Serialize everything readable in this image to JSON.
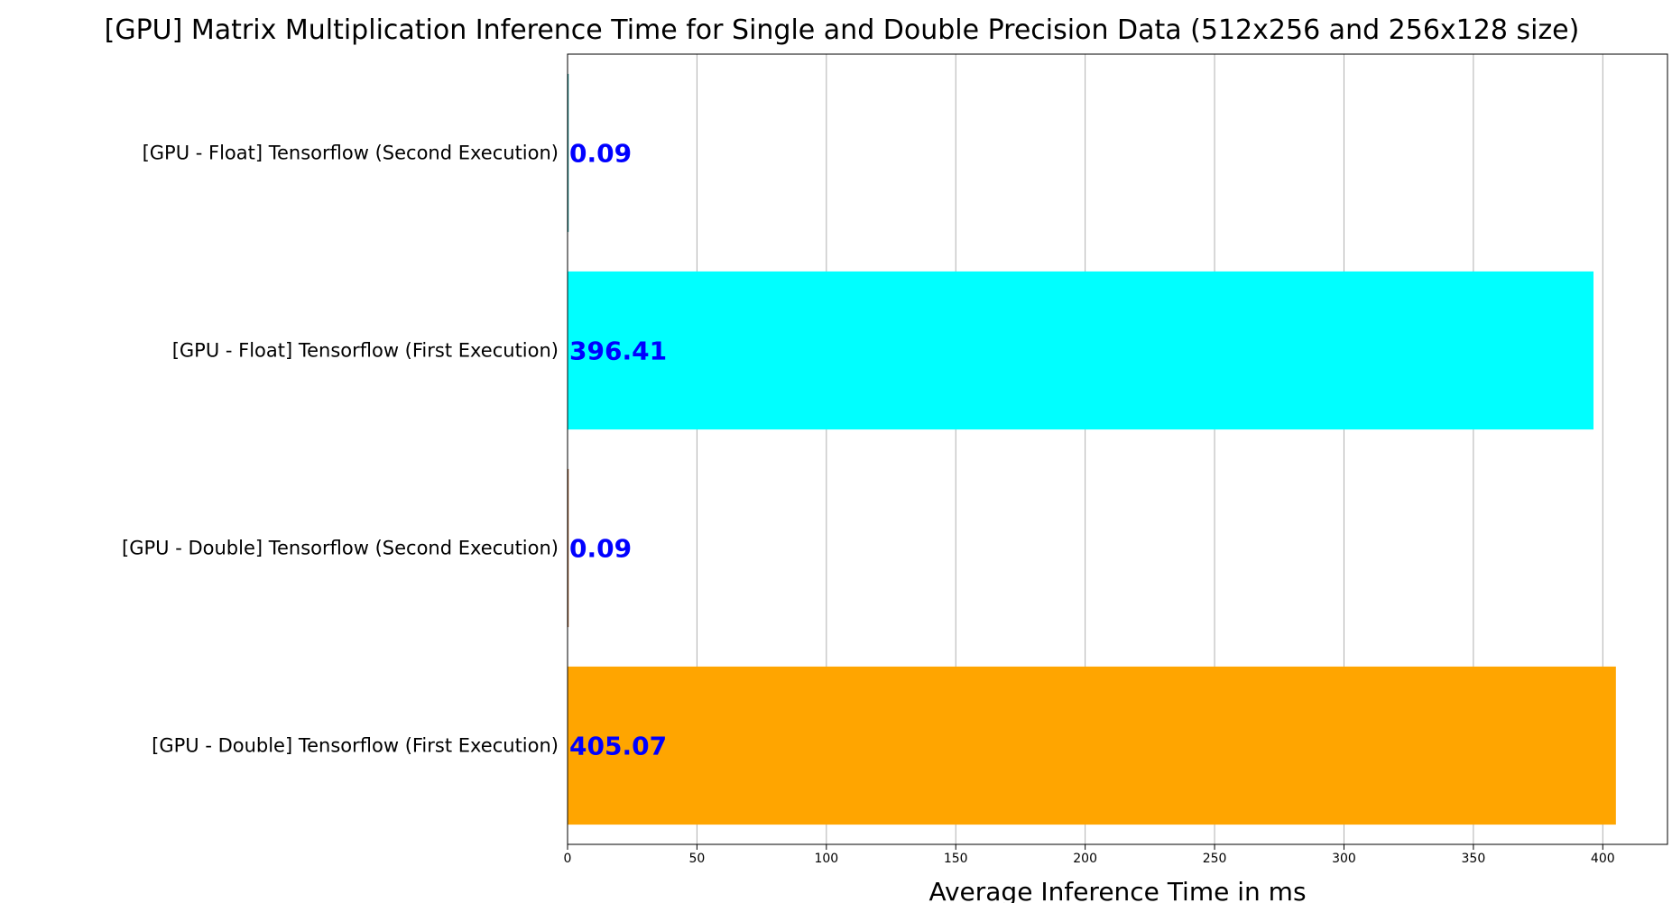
{
  "chart_data": {
    "type": "bar",
    "orientation": "horizontal",
    "title": "[GPU] Matrix Multiplication Inference Time for Single and Double Precision Data (512x256 and 256x128 size)",
    "xlabel": "Average Inference Time in ms",
    "ylabel": "",
    "xlim": [
      0,
      425
    ],
    "x_ticks": [
      0,
      50,
      100,
      150,
      200,
      250,
      300,
      350,
      400
    ],
    "grid": "vertical",
    "legend": "none",
    "categories": [
      "[GPU - Float] Tensorflow (Second Execution)",
      "[GPU - Float] Tensorflow (First Execution)",
      "[GPU - Double] Tensorflow (Second Execution)",
      "[GPU - Double] Tensorflow (First Execution)"
    ],
    "values": [
      0.09,
      396.41,
      0.09,
      405.07
    ],
    "value_labels": [
      "0.09",
      "396.41",
      "0.09",
      "405.07"
    ],
    "bar_colors": [
      "#008080",
      "#00ffff",
      "#8b4513",
      "#ffa500"
    ],
    "value_label_color": "#0000ff"
  }
}
